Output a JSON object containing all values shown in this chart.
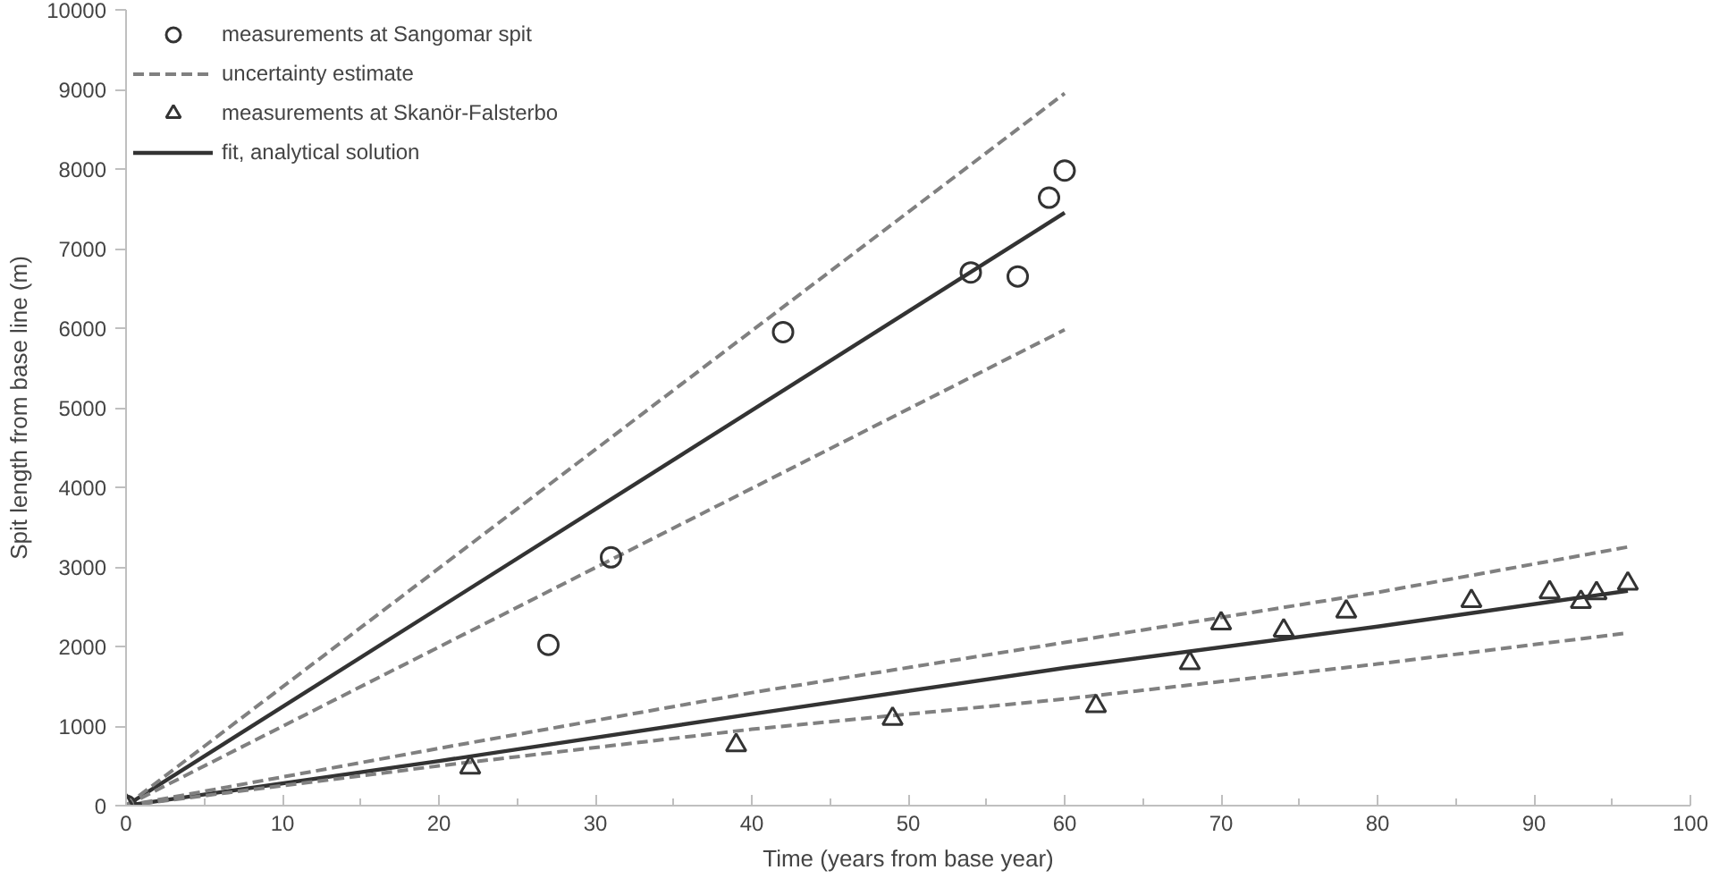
{
  "chart_data": {
    "type": "scatter",
    "xlabel": "Time (years from base year)",
    "ylabel": "Spit length from base line (m)",
    "xlim": [
      0,
      100
    ],
    "ylim": [
      0,
      10000
    ],
    "xticks": [
      0,
      10,
      20,
      30,
      40,
      50,
      60,
      70,
      80,
      90,
      100
    ],
    "yticks": [
      0,
      1000,
      2000,
      3000,
      4000,
      5000,
      6000,
      7000,
      8000,
      9000,
      10000
    ],
    "grid": false,
    "legend": "top left",
    "series": [
      {
        "name": "measurements at Sangomar spit",
        "marker": "circle",
        "color": "#333333",
        "x": [
          0,
          27,
          31,
          42,
          54,
          57,
          59,
          60
        ],
        "values": [
          0,
          2020,
          3120,
          5950,
          6700,
          6650,
          7640,
          7980
        ]
      },
      {
        "name": "uncertainty estimate",
        "type": "line",
        "line_style": "dashed",
        "color": "#808080",
        "x": [
          0,
          60
        ],
        "values": [
          0,
          8950
        ]
      },
      {
        "type": "line",
        "line_style": "dashed",
        "color": "#808080",
        "x": [
          0,
          60
        ],
        "values": [
          0,
          5980
        ]
      },
      {
        "name": "measurements at Skanör-Falsterbo",
        "marker": "triangle",
        "color": "#333333",
        "x": [
          0,
          22,
          39,
          49,
          62,
          68,
          70,
          74,
          78,
          86,
          91,
          93,
          94,
          96
        ],
        "values": [
          0,
          480,
          760,
          1090,
          1250,
          1790,
          2290,
          2200,
          2440,
          2570,
          2680,
          2560,
          2670,
          2790
        ]
      },
      {
        "name": "fit, analytical solution",
        "type": "line",
        "line_style": "solid",
        "color": "#333333",
        "x": [
          0,
          60
        ],
        "values": [
          0,
          7450
        ]
      },
      {
        "type": "line",
        "line_style": "dashed",
        "color": "#808080",
        "x": [
          0,
          20,
          40,
          60,
          80,
          96
        ],
        "values": [
          0,
          720,
          1420,
          2050,
          2680,
          3250
        ]
      },
      {
        "type": "line",
        "line_style": "dashed",
        "color": "#808080",
        "x": [
          0,
          20,
          40,
          60,
          80,
          96
        ],
        "values": [
          0,
          500,
          960,
          1340,
          1780,
          2170
        ]
      },
      {
        "type": "line",
        "line_style": "solid",
        "color": "#333333",
        "x": [
          0,
          20,
          40,
          60,
          80,
          96
        ],
        "values": [
          0,
          560,
          1150,
          1730,
          2250,
          2700
        ]
      }
    ]
  }
}
